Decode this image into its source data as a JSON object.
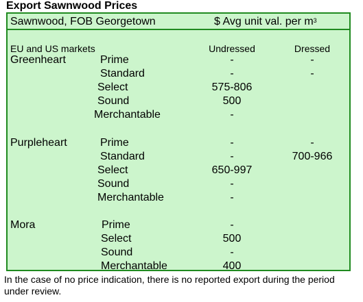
{
  "title": "Export Sawnwood Prices",
  "header": {
    "left": "Sawnwood, FOB Georgetown",
    "right": "$ Avg unit val. per m",
    "right_sup": "3"
  },
  "subheader": {
    "market": "EU and US markets",
    "col1": "Undressed",
    "col2": "Dressed"
  },
  "species": [
    {
      "name": "Greenheart",
      "rows": [
        {
          "grade": "Prime",
          "undressed": "-",
          "dressed": "-"
        },
        {
          "grade": "Standard",
          "undressed": "-",
          "dressed": "-"
        },
        {
          "grade": "Select",
          "undressed": "575-806",
          "dressed": ""
        },
        {
          "grade": "Sound",
          "undressed": "500",
          "dressed": ""
        },
        {
          "grade": "Merchantable",
          "undressed": "-",
          "dressed": ""
        }
      ]
    },
    {
      "name": "Purpleheart",
      "rows": [
        {
          "grade": "Prime",
          "undressed": "-",
          "dressed": "-"
        },
        {
          "grade": "Standard",
          "undressed": "-",
          "dressed": "700-966"
        },
        {
          "grade": "Select",
          "undressed": "650-997",
          "dressed": ""
        },
        {
          "grade": "Sound",
          "undressed": "-",
          "dressed": ""
        },
        {
          "grade": "Merchantable",
          "undressed": "-",
          "dressed": ""
        }
      ]
    },
    {
      "name": "Mora",
      "rows": [
        {
          "grade": "Prime",
          "undressed": "-",
          "dressed": ""
        },
        {
          "grade": "Select",
          "undressed": "500",
          "dressed": ""
        },
        {
          "grade": "Sound",
          "undressed": "-",
          "dressed": ""
        },
        {
          "grade": "Merchantable",
          "undressed": "400",
          "dressed": ""
        }
      ]
    }
  ],
  "footer": "In the case of no price indication, there is no reported export during the period under review."
}
